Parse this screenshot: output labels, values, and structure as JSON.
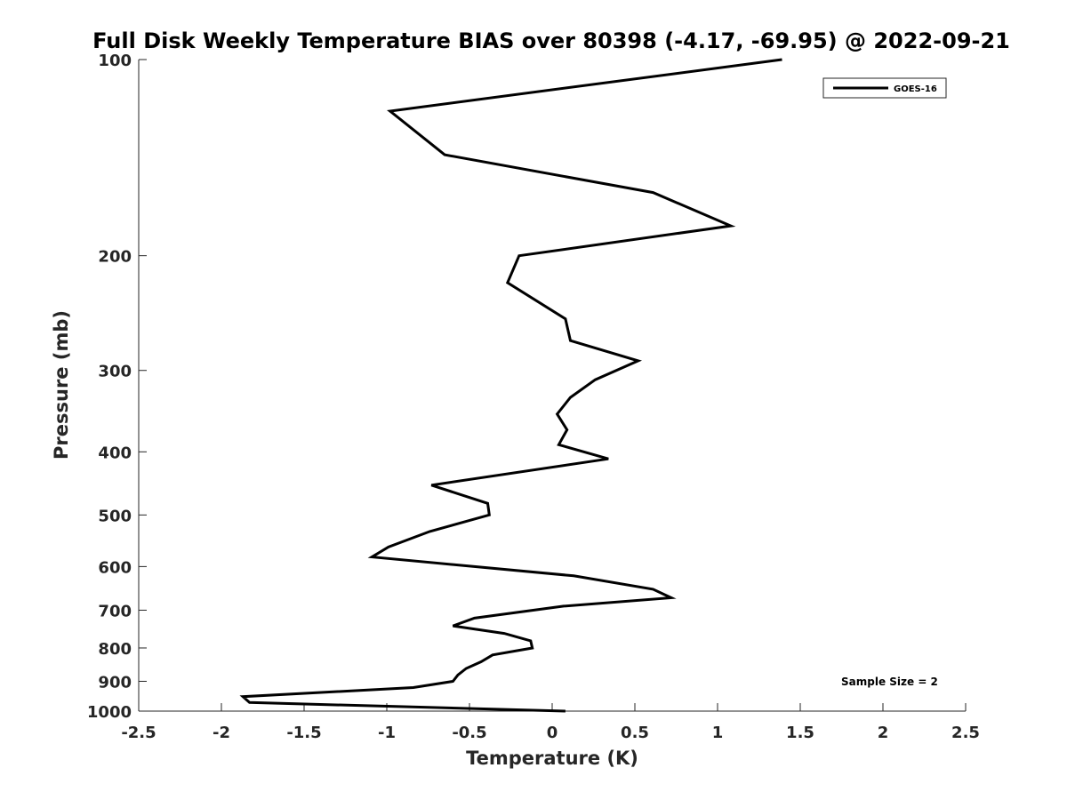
{
  "chart_data": {
    "type": "line",
    "title": "Full Disk Weekly Temperature BIAS over 80398 (-4.17, -69.95) @ 2022-09-21",
    "xlabel": "Temperature (K)",
    "ylabel": "Pressure (mb)",
    "xlim": [
      -2.5,
      2.5
    ],
    "ylim": [
      100,
      1000
    ],
    "y_scale": "log",
    "y_reversed": true,
    "x_ticks": [
      -2.5,
      -2,
      -1.5,
      -1,
      -0.5,
      0,
      0.5,
      1,
      1.5,
      2,
      2.5
    ],
    "x_tick_labels": [
      "-2.5",
      "-2",
      "-1.5",
      "-1",
      "-0.5",
      "0",
      "0.5",
      "1",
      "1.5",
      "2",
      "2.5"
    ],
    "y_ticks": [
      100,
      200,
      300,
      400,
      500,
      600,
      700,
      800,
      900,
      1000
    ],
    "y_tick_labels": [
      "100",
      "200",
      "300",
      "400",
      "500",
      "600",
      "700",
      "800",
      "900",
      "1000"
    ],
    "grid": false,
    "legend_position": "top-right",
    "annotation": "Sample Size = 2",
    "line_color": "#000000",
    "series": [
      {
        "name": "GOES-16",
        "x": [
          1.39,
          -0.98,
          -0.65,
          0.61,
          1.08,
          -0.2,
          -0.27,
          0.08,
          0.11,
          0.52,
          0.26,
          0.11,
          0.03,
          0.09,
          0.04,
          0.34,
          -0.73,
          -0.39,
          -0.38,
          -0.74,
          -0.99,
          -1.09,
          0.13,
          0.61,
          0.72,
          0.07,
          -0.47,
          -0.6,
          -0.29,
          -0.13,
          -0.12,
          -0.36,
          -0.43,
          -0.52,
          -0.57,
          -0.6,
          -0.84,
          -1.87,
          -1.83,
          0.08
        ],
        "y": [
          100,
          120,
          140,
          160,
          180,
          200,
          220,
          250,
          270,
          290,
          310,
          330,
          350,
          370,
          390,
          410,
          450,
          480,
          500,
          530,
          560,
          580,
          620,
          650,
          670,
          690,
          720,
          740,
          760,
          780,
          800,
          820,
          840,
          860,
          880,
          900,
          920,
          950,
          970,
          1000
        ]
      }
    ]
  }
}
